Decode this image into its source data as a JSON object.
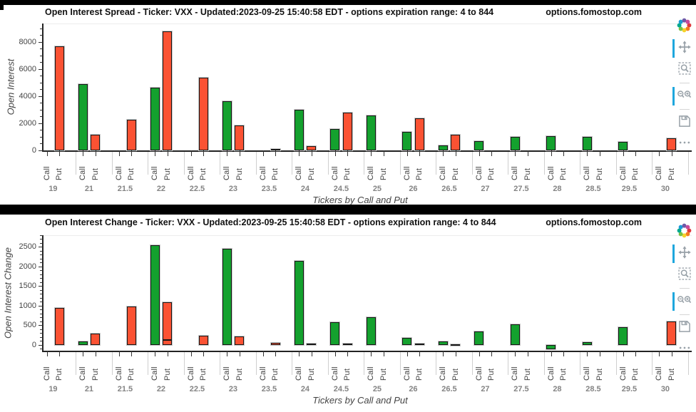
{
  "toolbar": {
    "buttons": [
      {
        "name": "plotly-logo",
        "label": "Produced with Plotly"
      },
      {
        "name": "pan",
        "label": "Pan"
      },
      {
        "name": "box-select",
        "label": "Box Select"
      },
      {
        "name": "zoom-in-out",
        "label": "Zoom In / Zoom Out"
      },
      {
        "name": "save",
        "label": "Download plot"
      },
      {
        "name": "more",
        "label": "More options"
      }
    ]
  },
  "colors": {
    "call": "#14a12e",
    "put": "#fb5233",
    "bar_stroke": "#161616",
    "accent_blue": "#1ea7dd",
    "divider": "#000000"
  },
  "charts": [
    {
      "title": "Open Interest Spread - Ticker: VXX - Updated:2023-09-25 15:40:58 EDT - options expiration range: 4 to 844",
      "watermark": "options.fomostop.com",
      "chart_data": {
        "type": "bar",
        "title": "Open Interest Spread",
        "xlabel": "Tickers by Call and Put",
        "ylabel": "Open Interest",
        "bar_labels": [
          "Call",
          "Put"
        ],
        "categories": [
          "19",
          "21",
          "21.5",
          "22",
          "22.5",
          "23",
          "23.5",
          "24",
          "24.5",
          "25",
          "26",
          "26.5",
          "27",
          "27.5",
          "28",
          "28.5",
          "29.5",
          "30"
        ],
        "yticks": [
          0,
          2000,
          4000,
          6000,
          8000
        ],
        "minor_tick_step": 500,
        "ylim": [
          0,
          9350
        ],
        "grid": false,
        "legend": "none",
        "series": [
          {
            "name": "Call",
            "color": "#14a12e",
            "values": [
              0,
              4900,
              0,
              4600,
              0,
              3650,
              0,
              3000,
              1600,
              2550,
              1350,
              350,
              660,
              1000,
              1050,
              1000,
              650,
              0
            ]
          },
          {
            "name": "Put",
            "color": "#fb5233",
            "values": [
              7650,
              1150,
              2250,
              8770,
              5350,
              1820,
              110,
              340,
              2800,
              0,
              2390,
              1160,
              0,
              0,
              0,
              0,
              0,
              870
            ]
          }
        ]
      }
    },
    {
      "title": "Open Interest Change - Ticker: VXX - Updated:2023-09-25 15:40:58 EDT - options expiration range: 4 to 844",
      "watermark": "options.fomostop.com",
      "chart_data": {
        "type": "bar",
        "title": "Open Interest Change",
        "xlabel": "Tickers by Call and Put",
        "ylabel": "Open Interest Change",
        "bar_labels": [
          "Call",
          "Put"
        ],
        "categories": [
          "19",
          "21",
          "21.5",
          "22",
          "22.5",
          "23",
          "23.5",
          "24",
          "24.5",
          "25",
          "26",
          "26.5",
          "27",
          "27.5",
          "28",
          "28.5",
          "29.5",
          "30"
        ],
        "yticks": [
          0,
          500,
          1000,
          1500,
          2000,
          2500
        ],
        "minor_tick_step": 100,
        "ylim": [
          -150,
          2800
        ],
        "grid": false,
        "legend": "none",
        "series": [
          {
            "name": "Call",
            "color": "#14a12e",
            "values": [
              0,
              80,
              0,
              2550,
              0,
              2450,
              0,
              2150,
              580,
              700,
              180,
              80,
              350,
              530,
              -120,
              70,
              450,
              0
            ]
          },
          {
            "name": "Put",
            "color": "#fb5233",
            "values": [
              950,
              290,
              980,
              1090,
              230,
              210,
              55,
              25,
              25,
              0,
              40,
              15,
              0,
              0,
              0,
              0,
              0,
              600
            ]
          }
        ],
        "annotations": [
          {
            "series": "Put",
            "category": "22",
            "inner_line_value": 150
          }
        ]
      }
    }
  ]
}
